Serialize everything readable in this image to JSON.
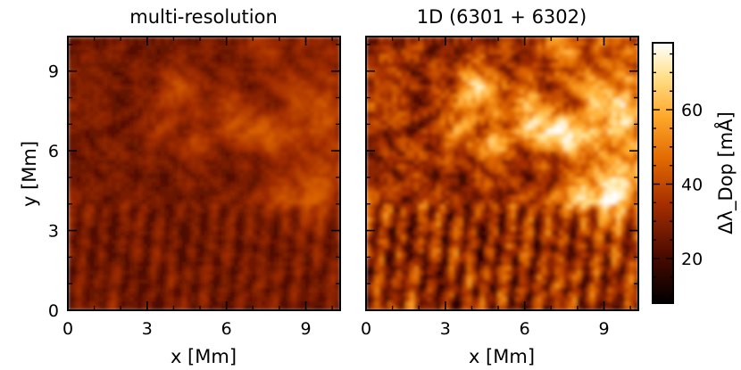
{
  "chart_data": {
    "type": "heatmap",
    "panels": [
      {
        "title": "multi-resolution",
        "xlabel": "x [Mm]",
        "ylabel": "y [Mm]",
        "xlim": [
          0,
          10.3
        ],
        "ylim": [
          0,
          10.3
        ],
        "xticks": [
          0,
          3,
          6,
          9
        ],
        "yticks": [
          0,
          3,
          6,
          9
        ],
        "value_range": [
          20,
          45
        ]
      },
      {
        "title": "1D (6301 + 6302)",
        "xlabel": "x [Mm]",
        "ylabel": "",
        "xlim": [
          0,
          10.3
        ],
        "ylim": [
          0,
          10.3
        ],
        "xticks": [
          0,
          3,
          6,
          9
        ],
        "yticks": [
          0,
          3,
          6,
          9
        ],
        "value_range": [
          15,
          78
        ]
      }
    ],
    "colorbar": {
      "label": "Δλ_Dop [mÅ]",
      "range": [
        8,
        78
      ],
      "ticks": [
        20,
        40,
        60
      ],
      "colormap": "afmhot"
    }
  }
}
